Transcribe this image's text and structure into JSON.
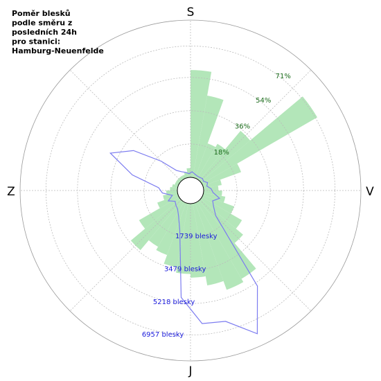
{
  "chart_data": {
    "type": "polar",
    "title": [
      "Poměr blesků",
      "podle směru z",
      "posledních 24h",
      "pro stanici:",
      "Hamburg-Neuenfelde"
    ],
    "direction_labels": [
      "S",
      "V",
      "J",
      "Z"
    ],
    "theta": [
      5,
      15,
      25,
      35,
      45,
      55,
      65,
      75,
      85,
      95,
      105,
      115,
      125,
      135,
      145,
      155,
      165,
      175,
      185,
      195,
      205,
      215,
      225,
      235,
      245,
      255,
      265,
      275,
      285,
      295,
      305,
      315,
      325,
      335,
      345,
      355
    ],
    "rlim": [
      0,
      85
    ],
    "rticks": [
      {
        "value": 18,
        "label": "18%"
      },
      {
        "value": 36,
        "label": "36%"
      },
      {
        "value": 54,
        "label": "54%"
      },
      {
        "value": 71,
        "label": "71%"
      }
    ],
    "r2lim": [
      0,
      8356
    ],
    "r2ticks": [
      {
        "value": 1739,
        "label": "1739 blesky"
      },
      {
        "value": 3479,
        "label": "3479 blesky"
      },
      {
        "value": 5218,
        "label": "5218 blesky"
      },
      {
        "value": 6957,
        "label": "6957 blesky"
      }
    ],
    "series": [
      {
        "color": "#b3e6b9",
        "values": [
          58,
          45,
          20,
          22,
          35,
          72,
          22,
          10,
          8,
          10,
          12,
          18,
          25,
          30,
          48,
          50,
          45,
          40,
          38,
          35,
          30,
          28,
          35,
          25,
          12,
          8,
          6,
          4,
          3,
          2,
          2,
          2,
          2,
          2,
          3,
          5
        ]
      },
      {
        "color": "#7b7bf0",
        "axis": "r2",
        "values": [
          300,
          200,
          150,
          150,
          200,
          150,
          300,
          200,
          400,
          500,
          900,
          600,
          800,
          1200,
          5500,
          7700,
          6500,
          6400,
          5000,
          1500,
          800,
          500,
          400,
          300,
          600,
          300,
          800,
          1000,
          2500,
          4000,
          3000,
          1500,
          600,
          400,
          300,
          200
        ]
      }
    ]
  }
}
